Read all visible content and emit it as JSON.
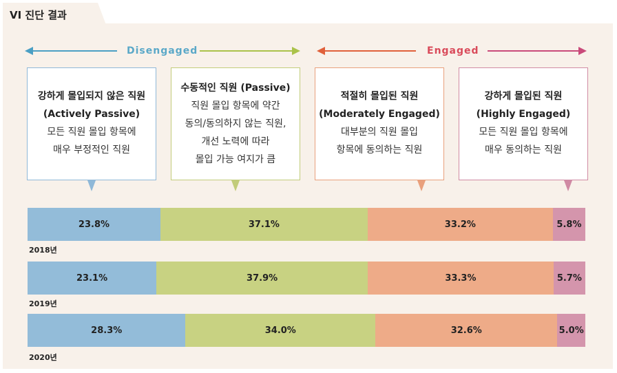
{
  "section_title": "VI 진단 결과",
  "groups": {
    "disengaged": {
      "label": "Disengaged",
      "color": "#4a9fc4"
    },
    "engaged": {
      "label": "Engaged",
      "color": "#c94a5c"
    }
  },
  "categories": [
    {
      "title": "강하게 몰입되지 않은 직원",
      "subtitle": "(Actively Passive)",
      "desc1": "모든 직원 몰입 항목에",
      "desc2": "매우 부정적인 직원",
      "color": "#93bcd9",
      "border": "#8fb8d8"
    },
    {
      "title": "수동적인 직원 (Passive)",
      "subtitle": "",
      "desc1": "직원 몰입 항목에 약간",
      "desc2": "동의/동의하지 않는 직원,",
      "desc3": "개선 노력에 따라",
      "desc4": "몰입 가능 여지가 큼",
      "color": "#c8d282",
      "border": "#c2cc7a"
    },
    {
      "title": "적절히 몰입된 직원",
      "subtitle": "(Moderately Engaged)",
      "desc1": "대부분의 직원 몰입",
      "desc2": "항목에 동의하는 직원",
      "color": "#eeab88",
      "border": "#e9a07c"
    },
    {
      "title": "강하게 몰입된 직원",
      "subtitle": "(Highly Engaged)",
      "desc1": "모든 직원 몰입 항목에",
      "desc2": "매우 동의하는 직원",
      "color": "#d495ac",
      "border": "#d08aa4"
    }
  ],
  "chart_data": {
    "type": "bar",
    "orientation": "horizontal-stacked-100",
    "categories": [
      "2018년",
      "2019년",
      "2020년"
    ],
    "series": [
      {
        "name": "강하게 몰입되지 않은 직원 (Actively Passive)",
        "values": [
          23.8,
          23.1,
          28.3
        ],
        "labels": [
          "23.8%",
          "23.1%",
          "28.3%"
        ]
      },
      {
        "name": "수동적인 직원 (Passive)",
        "values": [
          37.1,
          37.9,
          34.0
        ],
        "labels": [
          "37.1%",
          "37.9%",
          "34.0%"
        ]
      },
      {
        "name": "적절히 몰입된 직원 (Moderately Engaged)",
        "values": [
          33.2,
          33.3,
          32.6
        ],
        "labels": [
          "33.2%",
          "33.3%",
          "32.6%"
        ]
      },
      {
        "name": "강하게 몰입된 직원 (Highly Engaged)",
        "values": [
          5.8,
          5.7,
          5.0
        ],
        "labels": [
          "5.8%",
          "5.7%",
          "5.0%"
        ]
      }
    ],
    "xlim": [
      0,
      100
    ]
  }
}
